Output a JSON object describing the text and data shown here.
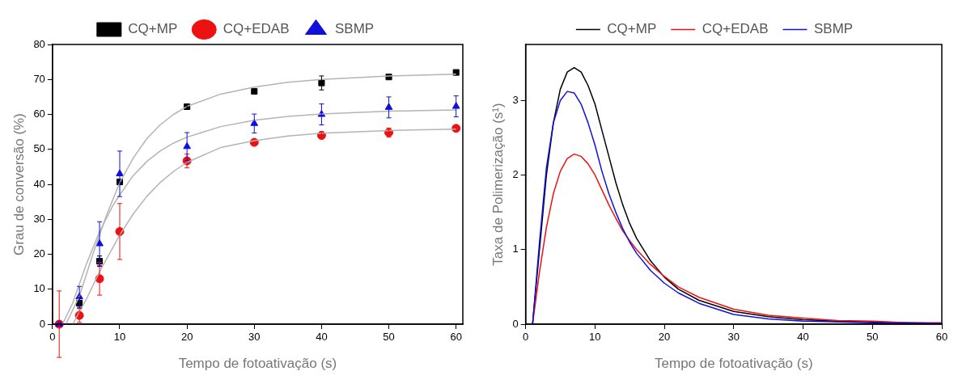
{
  "chart_data": [
    {
      "type": "scatter",
      "xlabel": "Tempo de fotoativação (s)",
      "ylabel": "Grau de conversão (%)",
      "xlim": [
        0,
        61
      ],
      "xticks": [
        0,
        10,
        20,
        30,
        40,
        50,
        60
      ],
      "ylim": [
        0,
        80
      ],
      "yticks": [
        0,
        10,
        20,
        30,
        40,
        50,
        60,
        70,
        80
      ],
      "grid": false,
      "legend": "top",
      "series": [
        {
          "name": "CQ+MP",
          "type": "scatter",
          "marker": "square",
          "color": "#000000",
          "x": [
            1,
            4,
            7,
            10,
            20,
            30,
            40,
            50,
            60
          ],
          "values": [
            0,
            6,
            18,
            40.7,
            62.2,
            66.6,
            69,
            70.7,
            72
          ],
          "errors": [
            null,
            1.5,
            1.5,
            null,
            0.8,
            null,
            2,
            null,
            null
          ]
        },
        {
          "name": "CQ+EDAB",
          "type": "scatter",
          "marker": "circle",
          "color": "#ee1111",
          "x": [
            1,
            4,
            7,
            10,
            20,
            30,
            40,
            50,
            60
          ],
          "values": [
            0,
            2.5,
            13,
            26.5,
            46.7,
            52,
            54,
            54.8,
            56
          ],
          "errors": [
            9.5,
            2,
            4.7,
            8,
            2,
            null,
            1,
            1.3,
            null
          ]
        },
        {
          "name": "SBMP",
          "type": "scatter",
          "marker": "triangle",
          "color": "#1010dd",
          "x": [
            1,
            4,
            7,
            10,
            20,
            30,
            40,
            50,
            60
          ],
          "values": [
            0,
            7.8,
            23,
            43,
            50.8,
            57.4,
            60,
            62,
            62.3
          ],
          "errors": [
            null,
            3,
            6.3,
            6.5,
            4,
            2.7,
            3,
            3,
            3
          ]
        },
        {
          "type": "line",
          "marker": "none",
          "color": "#b4b4b4",
          "x": [
            2,
            4,
            6,
            8,
            10,
            12,
            14,
            16,
            18,
            20,
            25,
            30,
            35,
            40,
            50,
            60
          ],
          "values": [
            0,
            8,
            20,
            31,
            40.5,
            47.5,
            53,
            57,
            60,
            62.3,
            65.8,
            67.8,
            69.2,
            70,
            71,
            71.5
          ]
        },
        {
          "type": "line",
          "marker": "none",
          "color": "#b4b4b4",
          "x": [
            3,
            5,
            7,
            9,
            10,
            12,
            14,
            16,
            18,
            20,
            25,
            30,
            35,
            40,
            50,
            60
          ],
          "values": [
            0,
            7,
            15,
            22,
            25.5,
            31.5,
            36.5,
            40.5,
            43.7,
            46.3,
            50.5,
            52.5,
            53.8,
            54.6,
            55.4,
            55.8
          ]
        },
        {
          "type": "line",
          "marker": "none",
          "color": "#b4b4b4",
          "x": [
            1.5,
            3,
            5,
            7,
            9,
            10,
            12,
            14,
            16,
            18,
            20,
            25,
            30,
            35,
            40,
            50,
            60
          ],
          "values": [
            0,
            6,
            17,
            26.5,
            34,
            37,
            42.5,
            46.5,
            49.5,
            51.8,
            53.5,
            56.5,
            58.3,
            59.4,
            60.1,
            60.9,
            61.3
          ]
        }
      ]
    },
    {
      "type": "line",
      "xlabel": "Tempo de fotoativação (s)",
      "ylabel": "Taxa de Polimerização (s¹)",
      "xlim": [
        0,
        60
      ],
      "xticks": [
        0,
        10,
        20,
        30,
        40,
        50,
        60
      ],
      "ylim": [
        0,
        3.75
      ],
      "yticks": [
        0,
        1,
        2,
        3
      ],
      "grid": false,
      "legend": "top",
      "marker": "none",
      "series": [
        {
          "name": "CQ+MP",
          "color": "#000000",
          "x": [
            1,
            2,
            3,
            4,
            5,
            6,
            7,
            8,
            9,
            10,
            11,
            12,
            13,
            14,
            15,
            16,
            18,
            20,
            22,
            25,
            30,
            35,
            40,
            45,
            50,
            55,
            60
          ],
          "values": [
            0,
            1.0,
            2.0,
            2.7,
            3.15,
            3.38,
            3.44,
            3.38,
            3.2,
            2.95,
            2.6,
            2.25,
            1.9,
            1.6,
            1.35,
            1.15,
            0.85,
            0.63,
            0.47,
            0.32,
            0.17,
            0.1,
            0.06,
            0.04,
            0.03,
            0.02,
            0.01
          ]
        },
        {
          "name": "CQ+EDAB",
          "color": "#ee1111",
          "x": [
            1,
            2,
            3,
            4,
            5,
            6,
            7,
            8,
            9,
            10,
            11,
            12,
            13,
            14,
            15,
            16,
            18,
            20,
            22,
            25,
            30,
            35,
            40,
            45,
            50,
            55,
            60
          ],
          "values": [
            0,
            0.7,
            1.3,
            1.75,
            2.05,
            2.22,
            2.28,
            2.25,
            2.15,
            2.0,
            1.8,
            1.6,
            1.42,
            1.25,
            1.12,
            1.0,
            0.8,
            0.64,
            0.5,
            0.36,
            0.2,
            0.12,
            0.08,
            0.05,
            0.04,
            0.02,
            0.02
          ]
        },
        {
          "name": "SBMP",
          "color": "#1010dd",
          "x": [
            1,
            2,
            3,
            4,
            5,
            6,
            7,
            8,
            9,
            10,
            11,
            12,
            13,
            14,
            15,
            16,
            18,
            20,
            22,
            25,
            30,
            35,
            40,
            45,
            50,
            60
          ],
          "values": [
            0,
            1.1,
            2.1,
            2.7,
            3.0,
            3.12,
            3.1,
            2.95,
            2.7,
            2.4,
            2.05,
            1.75,
            1.5,
            1.28,
            1.1,
            0.95,
            0.72,
            0.55,
            0.42,
            0.28,
            0.13,
            0.07,
            0.04,
            0.03,
            0.02,
            0.01
          ]
        }
      ]
    }
  ]
}
